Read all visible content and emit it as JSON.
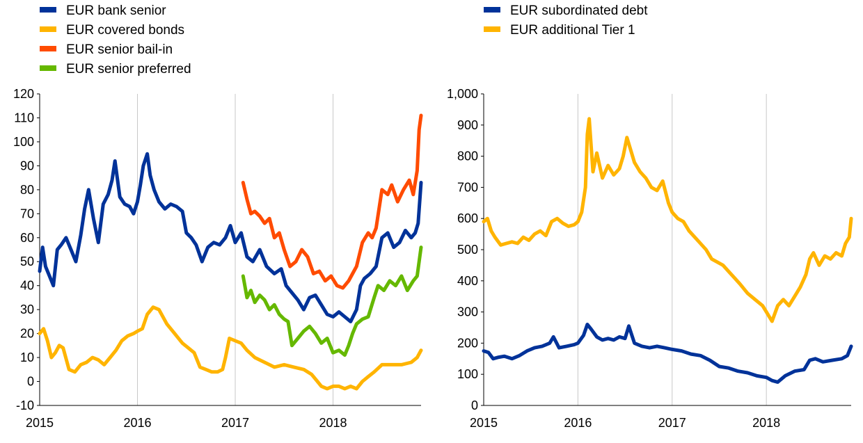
{
  "colors": {
    "bank_senior": "#003299",
    "covered_bonds": "#FFB400",
    "senior_bailin": "#FF4B00",
    "senior_preferred": "#65B800",
    "subordinated_debt": "#003299",
    "additional_tier1": "#FFB400"
  },
  "chart_data": [
    {
      "type": "line",
      "xlim": [
        2015.0,
        2018.9
      ],
      "ylim": [
        -10,
        120
      ],
      "y_ticks": [
        "-10",
        "0",
        "10",
        "20",
        "30",
        "40",
        "50",
        "60",
        "70",
        "80",
        "90",
        "100",
        "110",
        "120"
      ],
      "x_ticks": [
        "2015",
        "2016",
        "2017",
        "2018"
      ],
      "legend_position": "top-left",
      "grid": "vertical",
      "series": [
        {
          "name": "EUR bank senior",
          "color": "#003299",
          "x": [
            2015.0,
            2015.03,
            2015.06,
            2015.1,
            2015.14,
            2015.18,
            2015.22,
            2015.27,
            2015.32,
            2015.37,
            2015.42,
            2015.46,
            2015.5,
            2015.55,
            2015.6,
            2015.65,
            2015.7,
            2015.74,
            2015.77,
            2015.82,
            2015.87,
            2015.92,
            2015.96,
            2016.0,
            2016.03,
            2016.06,
            2016.1,
            2016.13,
            2016.17,
            2016.22,
            2016.28,
            2016.34,
            2016.4,
            2016.46,
            2016.5,
            2016.55,
            2016.6,
            2016.66,
            2016.72,
            2016.78,
            2016.84,
            2016.9,
            2016.95,
            2017.0,
            2017.06,
            2017.12,
            2017.18,
            2017.25,
            2017.32,
            2017.4,
            2017.47,
            2017.52,
            2017.58,
            2017.64,
            2017.7,
            2017.76,
            2017.82,
            2017.88,
            2017.94,
            2018.0,
            2018.06,
            2018.12,
            2018.18,
            2018.24,
            2018.28,
            2018.32,
            2018.38,
            2018.44,
            2018.5,
            2018.56,
            2018.62,
            2018.68,
            2018.74,
            2018.8,
            2018.84,
            2018.87,
            2018.9
          ],
          "values": [
            46,
            56,
            48,
            44,
            40,
            55,
            57,
            60,
            55,
            50,
            61,
            72,
            80,
            68,
            58,
            74,
            78,
            84,
            92,
            77,
            74,
            73,
            70,
            75,
            82,
            90,
            95,
            86,
            80,
            75,
            72,
            74,
            73,
            71,
            62,
            60,
            57,
            50,
            56,
            58,
            57,
            60,
            65,
            58,
            62,
            52,
            50,
            55,
            48,
            45,
            47,
            40,
            37,
            34,
            30,
            35,
            36,
            32,
            28,
            27,
            29,
            27,
            25,
            30,
            40,
            43,
            45,
            48,
            60,
            62,
            56,
            58,
            63,
            60,
            62,
            66,
            83
          ]
        },
        {
          "name": "EUR covered bonds",
          "color": "#FFB400",
          "x": [
            2015.0,
            2015.04,
            2015.08,
            2015.12,
            2015.16,
            2015.2,
            2015.24,
            2015.3,
            2015.36,
            2015.42,
            2015.48,
            2015.54,
            2015.6,
            2015.66,
            2015.72,
            2015.78,
            2015.84,
            2015.9,
            2015.96,
            2016.0,
            2016.05,
            2016.1,
            2016.16,
            2016.22,
            2016.3,
            2016.38,
            2016.46,
            2016.52,
            2016.58,
            2016.64,
            2016.7,
            2016.76,
            2016.82,
            2016.87,
            2016.9,
            2016.94,
            2017.0,
            2017.06,
            2017.12,
            2017.2,
            2017.3,
            2017.4,
            2017.5,
            2017.6,
            2017.7,
            2017.78,
            2017.84,
            2017.88,
            2017.94,
            2018.0,
            2018.06,
            2018.12,
            2018.18,
            2018.24,
            2018.3,
            2018.36,
            2018.42,
            2018.5,
            2018.6,
            2018.7,
            2018.8,
            2018.86,
            2018.9
          ],
          "values": [
            20,
            22,
            17,
            10,
            12,
            15,
            14,
            5,
            4,
            7,
            8,
            10,
            9,
            7,
            10,
            13,
            17,
            19,
            20,
            21,
            22,
            28,
            31,
            30,
            24,
            20,
            16,
            14,
            12,
            6,
            5,
            4,
            4,
            5,
            10,
            18,
            17,
            16,
            13,
            10,
            8,
            6,
            7,
            6,
            5,
            3,
            0,
            -2,
            -3,
            -2,
            -2,
            -3,
            -2,
            -3,
            0,
            2,
            4,
            7,
            7,
            7,
            8,
            10,
            13
          ]
        },
        {
          "name": "EUR senior bail-in",
          "color": "#FF4B00",
          "x": [
            2017.08,
            2017.12,
            2017.16,
            2017.2,
            2017.25,
            2017.3,
            2017.35,
            2017.4,
            2017.45,
            2017.5,
            2017.56,
            2017.62,
            2017.68,
            2017.74,
            2017.8,
            2017.86,
            2017.92,
            2017.98,
            2018.04,
            2018.1,
            2018.16,
            2018.2,
            2018.24,
            2018.3,
            2018.36,
            2018.4,
            2018.44,
            2018.5,
            2018.56,
            2018.6,
            2018.66,
            2018.72,
            2018.78,
            2018.82,
            2018.86,
            2018.88,
            2018.9
          ],
          "values": [
            83,
            76,
            70,
            71,
            69,
            66,
            68,
            60,
            62,
            55,
            48,
            50,
            55,
            52,
            45,
            46,
            42,
            44,
            40,
            39,
            42,
            45,
            48,
            58,
            62,
            60,
            64,
            80,
            78,
            82,
            75,
            80,
            84,
            78,
            88,
            105,
            111
          ]
        },
        {
          "name": "EUR senior preferred",
          "color": "#65B800",
          "x": [
            2017.08,
            2017.12,
            2017.16,
            2017.2,
            2017.25,
            2017.3,
            2017.35,
            2017.4,
            2017.45,
            2017.5,
            2017.54,
            2017.58,
            2017.64,
            2017.7,
            2017.76,
            2017.82,
            2017.88,
            2017.94,
            2018.0,
            2018.06,
            2018.12,
            2018.16,
            2018.2,
            2018.24,
            2018.3,
            2018.36,
            2018.42,
            2018.46,
            2018.52,
            2018.58,
            2018.64,
            2018.7,
            2018.76,
            2018.82,
            2018.86,
            2018.9
          ],
          "values": [
            44,
            35,
            38,
            33,
            36,
            34,
            30,
            32,
            28,
            26,
            25,
            15,
            18,
            21,
            23,
            20,
            16,
            18,
            12,
            13,
            11,
            15,
            20,
            24,
            26,
            27,
            35,
            40,
            38,
            42,
            40,
            44,
            38,
            42,
            44,
            56
          ]
        }
      ]
    },
    {
      "type": "line",
      "xlim": [
        2015.0,
        2018.9
      ],
      "ylim": [
        0,
        1000
      ],
      "y_ticks": [
        "0",
        "100",
        "200",
        "300",
        "400",
        "500",
        "600",
        "700",
        "800",
        "900",
        "1,000"
      ],
      "x_ticks": [
        "2015",
        "2016",
        "2017",
        "2018"
      ],
      "legend_position": "top-left",
      "grid": "vertical",
      "series": [
        {
          "name": "EUR subordinated debt",
          "color": "#003299",
          "x": [
            2015.0,
            2015.05,
            2015.1,
            2015.16,
            2015.22,
            2015.3,
            2015.38,
            2015.46,
            2015.54,
            2015.62,
            2015.7,
            2015.74,
            2015.8,
            2015.88,
            2015.96,
            2016.0,
            2016.06,
            2016.1,
            2016.14,
            2016.2,
            2016.26,
            2016.32,
            2016.38,
            2016.44,
            2016.5,
            2016.54,
            2016.6,
            2016.68,
            2016.76,
            2016.84,
            2016.92,
            2017.0,
            2017.1,
            2017.2,
            2017.3,
            2017.4,
            2017.5,
            2017.6,
            2017.7,
            2017.8,
            2017.9,
            2018.0,
            2018.06,
            2018.12,
            2018.2,
            2018.3,
            2018.4,
            2018.46,
            2018.52,
            2018.6,
            2018.7,
            2018.8,
            2018.86,
            2018.9
          ],
          "values": [
            175,
            170,
            150,
            155,
            158,
            150,
            160,
            175,
            185,
            190,
            200,
            220,
            185,
            190,
            195,
            200,
            225,
            260,
            245,
            220,
            210,
            215,
            210,
            220,
            215,
            255,
            200,
            190,
            185,
            190,
            185,
            180,
            175,
            165,
            160,
            145,
            125,
            120,
            110,
            105,
            95,
            90,
            80,
            75,
            95,
            110,
            115,
            145,
            150,
            140,
            145,
            150,
            160,
            190
          ]
        },
        {
          "name": "EUR additional Tier 1",
          "color": "#FFB400",
          "x": [
            2015.0,
            2015.04,
            2015.08,
            2015.12,
            2015.18,
            2015.24,
            2015.3,
            2015.36,
            2015.42,
            2015.48,
            2015.54,
            2015.6,
            2015.66,
            2015.72,
            2015.78,
            2015.84,
            2015.9,
            2015.96,
            2016.0,
            2016.04,
            2016.08,
            2016.1,
            2016.12,
            2016.16,
            2016.2,
            2016.26,
            2016.32,
            2016.38,
            2016.44,
            2016.48,
            2016.52,
            2016.56,
            2016.6,
            2016.66,
            2016.72,
            2016.78,
            2016.84,
            2016.9,
            2016.96,
            2017.0,
            2017.06,
            2017.12,
            2017.18,
            2017.24,
            2017.3,
            2017.36,
            2017.42,
            2017.48,
            2017.54,
            2017.6,
            2017.66,
            2017.72,
            2017.8,
            2017.88,
            2017.96,
            2018.0,
            2018.06,
            2018.12,
            2018.18,
            2018.24,
            2018.3,
            2018.36,
            2018.42,
            2018.46,
            2018.5,
            2018.56,
            2018.62,
            2018.68,
            2018.74,
            2018.8,
            2018.84,
            2018.88,
            2018.9
          ],
          "values": [
            590,
            600,
            560,
            540,
            515,
            520,
            525,
            520,
            540,
            530,
            550,
            560,
            545,
            590,
            600,
            585,
            575,
            580,
            590,
            620,
            700,
            870,
            920,
            750,
            810,
            730,
            770,
            740,
            760,
            800,
            860,
            820,
            780,
            750,
            730,
            700,
            690,
            720,
            650,
            620,
            600,
            590,
            560,
            540,
            520,
            500,
            470,
            460,
            450,
            430,
            410,
            390,
            360,
            340,
            320,
            300,
            270,
            320,
            340,
            320,
            350,
            380,
            420,
            470,
            490,
            450,
            480,
            470,
            490,
            480,
            520,
            540,
            600
          ]
        }
      ]
    }
  ]
}
